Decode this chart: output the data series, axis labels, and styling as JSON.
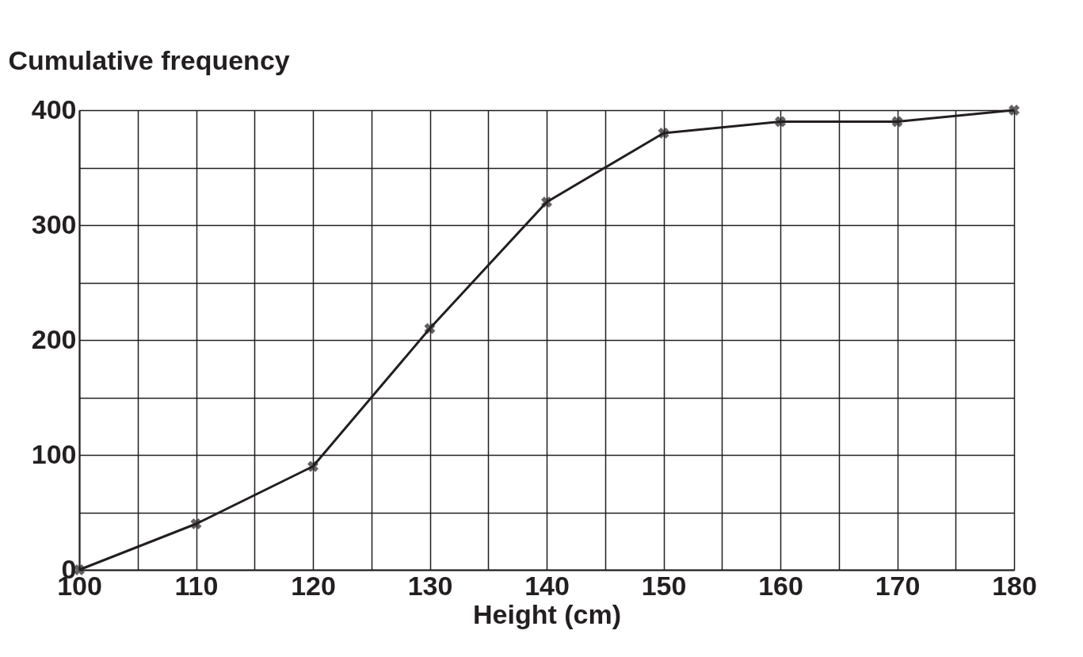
{
  "chart_data": {
    "type": "line",
    "xlabel": "Height (cm)",
    "ylabel": "Cumulative frequency",
    "x": [
      100,
      110,
      120,
      130,
      140,
      150,
      160,
      170,
      180
    ],
    "series": [
      {
        "color": "#231f20",
        "values": [
          0,
          40,
          90,
          210,
          320,
          380,
          390,
          390,
          400
        ]
      }
    ],
    "xlim": [
      100,
      180
    ],
    "ylim": [
      0,
      400
    ],
    "xticks": [
      100,
      {
        "value": 105,
        "label": null
      },
      110,
      {
        "value": 115,
        "label": null
      },
      120,
      {
        "value": 125,
        "label": null
      },
      130,
      {
        "value": 135,
        "label": null
      },
      140,
      {
        "value": 145,
        "label": null
      },
      150,
      {
        "value": 155,
        "label": null
      },
      160,
      {
        "value": 165,
        "label": null
      },
      170,
      {
        "value": 175,
        "label": null
      },
      180
    ],
    "yticks": [
      0,
      {
        "value": 50,
        "label": null
      },
      100,
      {
        "value": 150,
        "label": null
      },
      200,
      {
        "value": 250,
        "label": null
      },
      300,
      {
        "value": 350,
        "label": null
      },
      400
    ],
    "grid": true,
    "marker": "cross",
    "line_style": "solid"
  }
}
